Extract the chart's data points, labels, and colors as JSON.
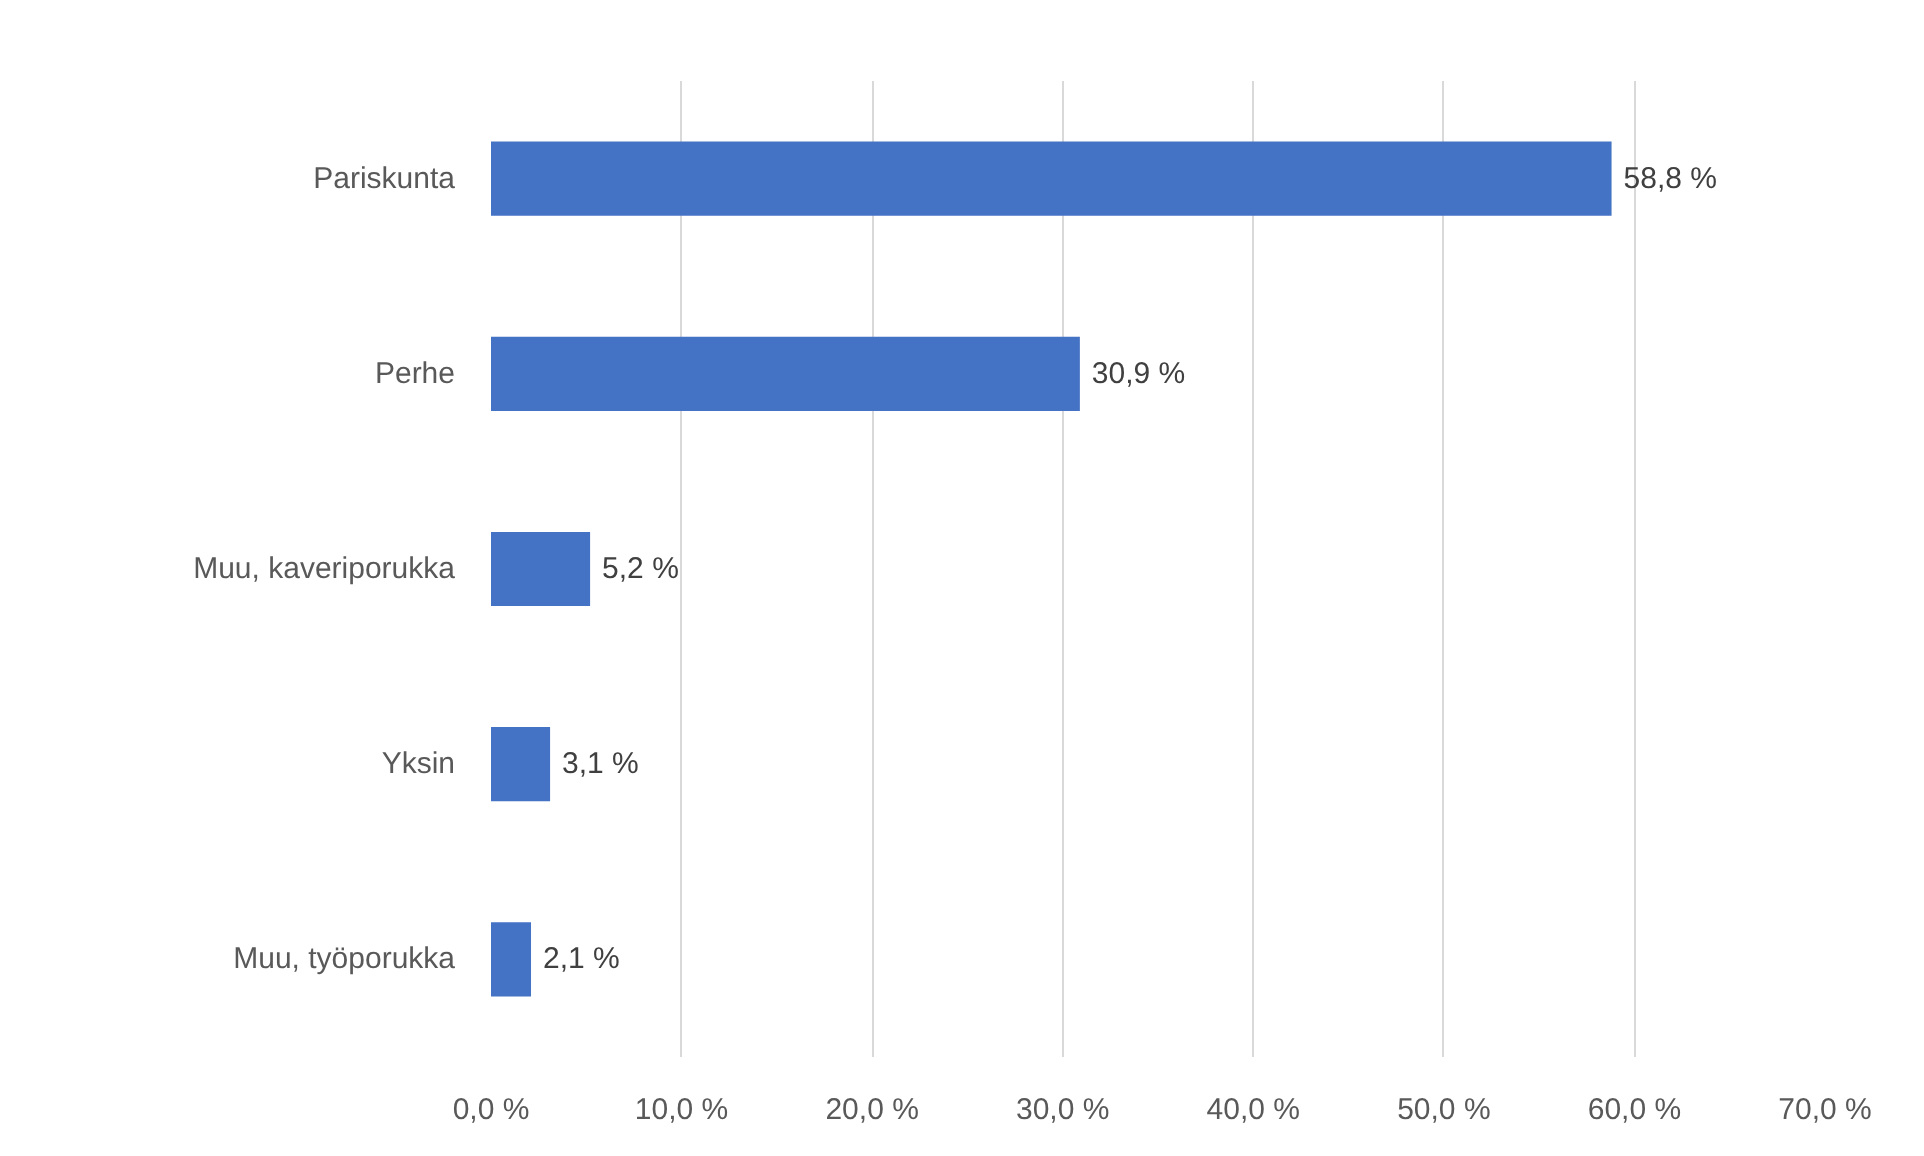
{
  "chart_data": {
    "type": "bar",
    "orientation": "horizontal",
    "categories": [
      "Pariskunta",
      "Perhe",
      "Muu, kaveriporukka",
      "Yksin",
      "Muu, työporukka"
    ],
    "values": [
      58.8,
      30.9,
      5.2,
      3.1,
      2.1
    ],
    "value_labels": [
      "58,8 %",
      "30,9 %",
      "5,2 %",
      "3,1 %",
      "2,1 %"
    ],
    "color": "#4472c4",
    "xlim": [
      0,
      70
    ],
    "xticks": [
      {
        "value": 0,
        "label": "0,0 %"
      },
      {
        "value": 10,
        "label": "10,0 %"
      },
      {
        "value": 20,
        "label": "20,0 %"
      },
      {
        "value": 30,
        "label": "30,0 %"
      },
      {
        "value": 40,
        "label": "40,0 %"
      },
      {
        "value": 50,
        "label": "50,0 %"
      },
      {
        "value": 60,
        "label": "60,0 %"
      },
      {
        "value": 70,
        "label": "70,0 %"
      }
    ],
    "grid": "x"
  }
}
